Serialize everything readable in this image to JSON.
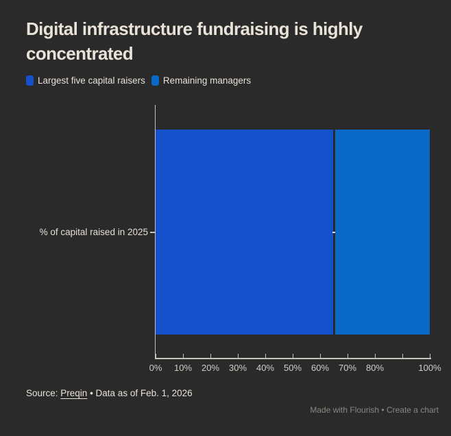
{
  "title": {
    "text": "Digital infrastructure fundraising is highly concentrated"
  },
  "legend": {
    "items": [
      {
        "label": "Largest five capital raisers",
        "color": "#1551CA"
      },
      {
        "label": "Remaining managers",
        "color": "#0A69C7"
      }
    ]
  },
  "chart_data": {
    "type": "bar",
    "orientation": "horizontal",
    "stacked": true,
    "categories": [
      "% of capital raised in 2025"
    ],
    "series": [
      {
        "name": "Largest five capital raisers",
        "values": [
          65
        ],
        "color": "#1551CA"
      },
      {
        "name": "Remaining managers",
        "values": [
          35
        ],
        "color": "#0A69C7"
      }
    ],
    "xlim": [
      0,
      100
    ],
    "x_tick_values": [
      0,
      10,
      20,
      30,
      40,
      50,
      60,
      70,
      80,
      90,
      100
    ],
    "x_tick_labels": [
      "0%",
      "10%",
      "20%",
      "30%",
      "40%",
      "50%",
      "60%",
      "70%",
      "80%",
      "",
      "100%"
    ],
    "legend_position": "top",
    "grid": false
  },
  "source": {
    "prefix": "Source: ",
    "link_text": "Preqin",
    "suffix": " • Data as of Feb. 1, 2026"
  },
  "credit": {
    "made_with": "Made with Flourish",
    "separator": " • ",
    "create_chart": "Create a chart"
  },
  "colors": {
    "background": "#2A2A2A",
    "title_text": "#E8E2D8",
    "axis": "#C8C3BB",
    "tick_label": "#D2CDC5",
    "credit_text": "#8B8781"
  }
}
